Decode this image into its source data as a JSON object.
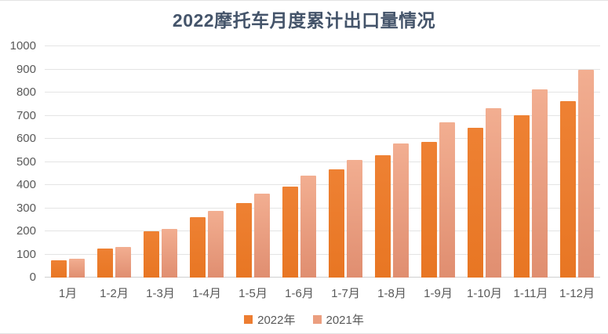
{
  "chart": {
    "title": "2022摩托车月度累计出口量情况"
  },
  "chart_data": {
    "type": "bar",
    "title": "2022摩托车月度累计出口量情况",
    "categories": [
      "1月",
      "1-2月",
      "1-3月",
      "1-4月",
      "1-5月",
      "1-6月",
      "1-7月",
      "1-8月",
      "1-9月",
      "1-10月",
      "1-11月",
      "1-12月"
    ],
    "series": [
      {
        "name": "2022年",
        "color": "#EE8133",
        "color2": "#E87623",
        "legend_color": "#ED7D31",
        "values": [
          75,
          125,
          200,
          260,
          322,
          394,
          469,
          528,
          588,
          648,
          703,
          762
        ]
      },
      {
        "name": "2021年",
        "color": "#F2AE91",
        "color2": "#E08E70",
        "legend_color": "#EB9E7F",
        "values": [
          82,
          131,
          210,
          289,
          363,
          440,
          510,
          581,
          670,
          732,
          813,
          897
        ]
      }
    ],
    "xlabel": "",
    "ylabel": "",
    "ylim": [
      0,
      1000
    ],
    "ytick_step": 100,
    "grid": true,
    "legend_position": "bottom"
  }
}
